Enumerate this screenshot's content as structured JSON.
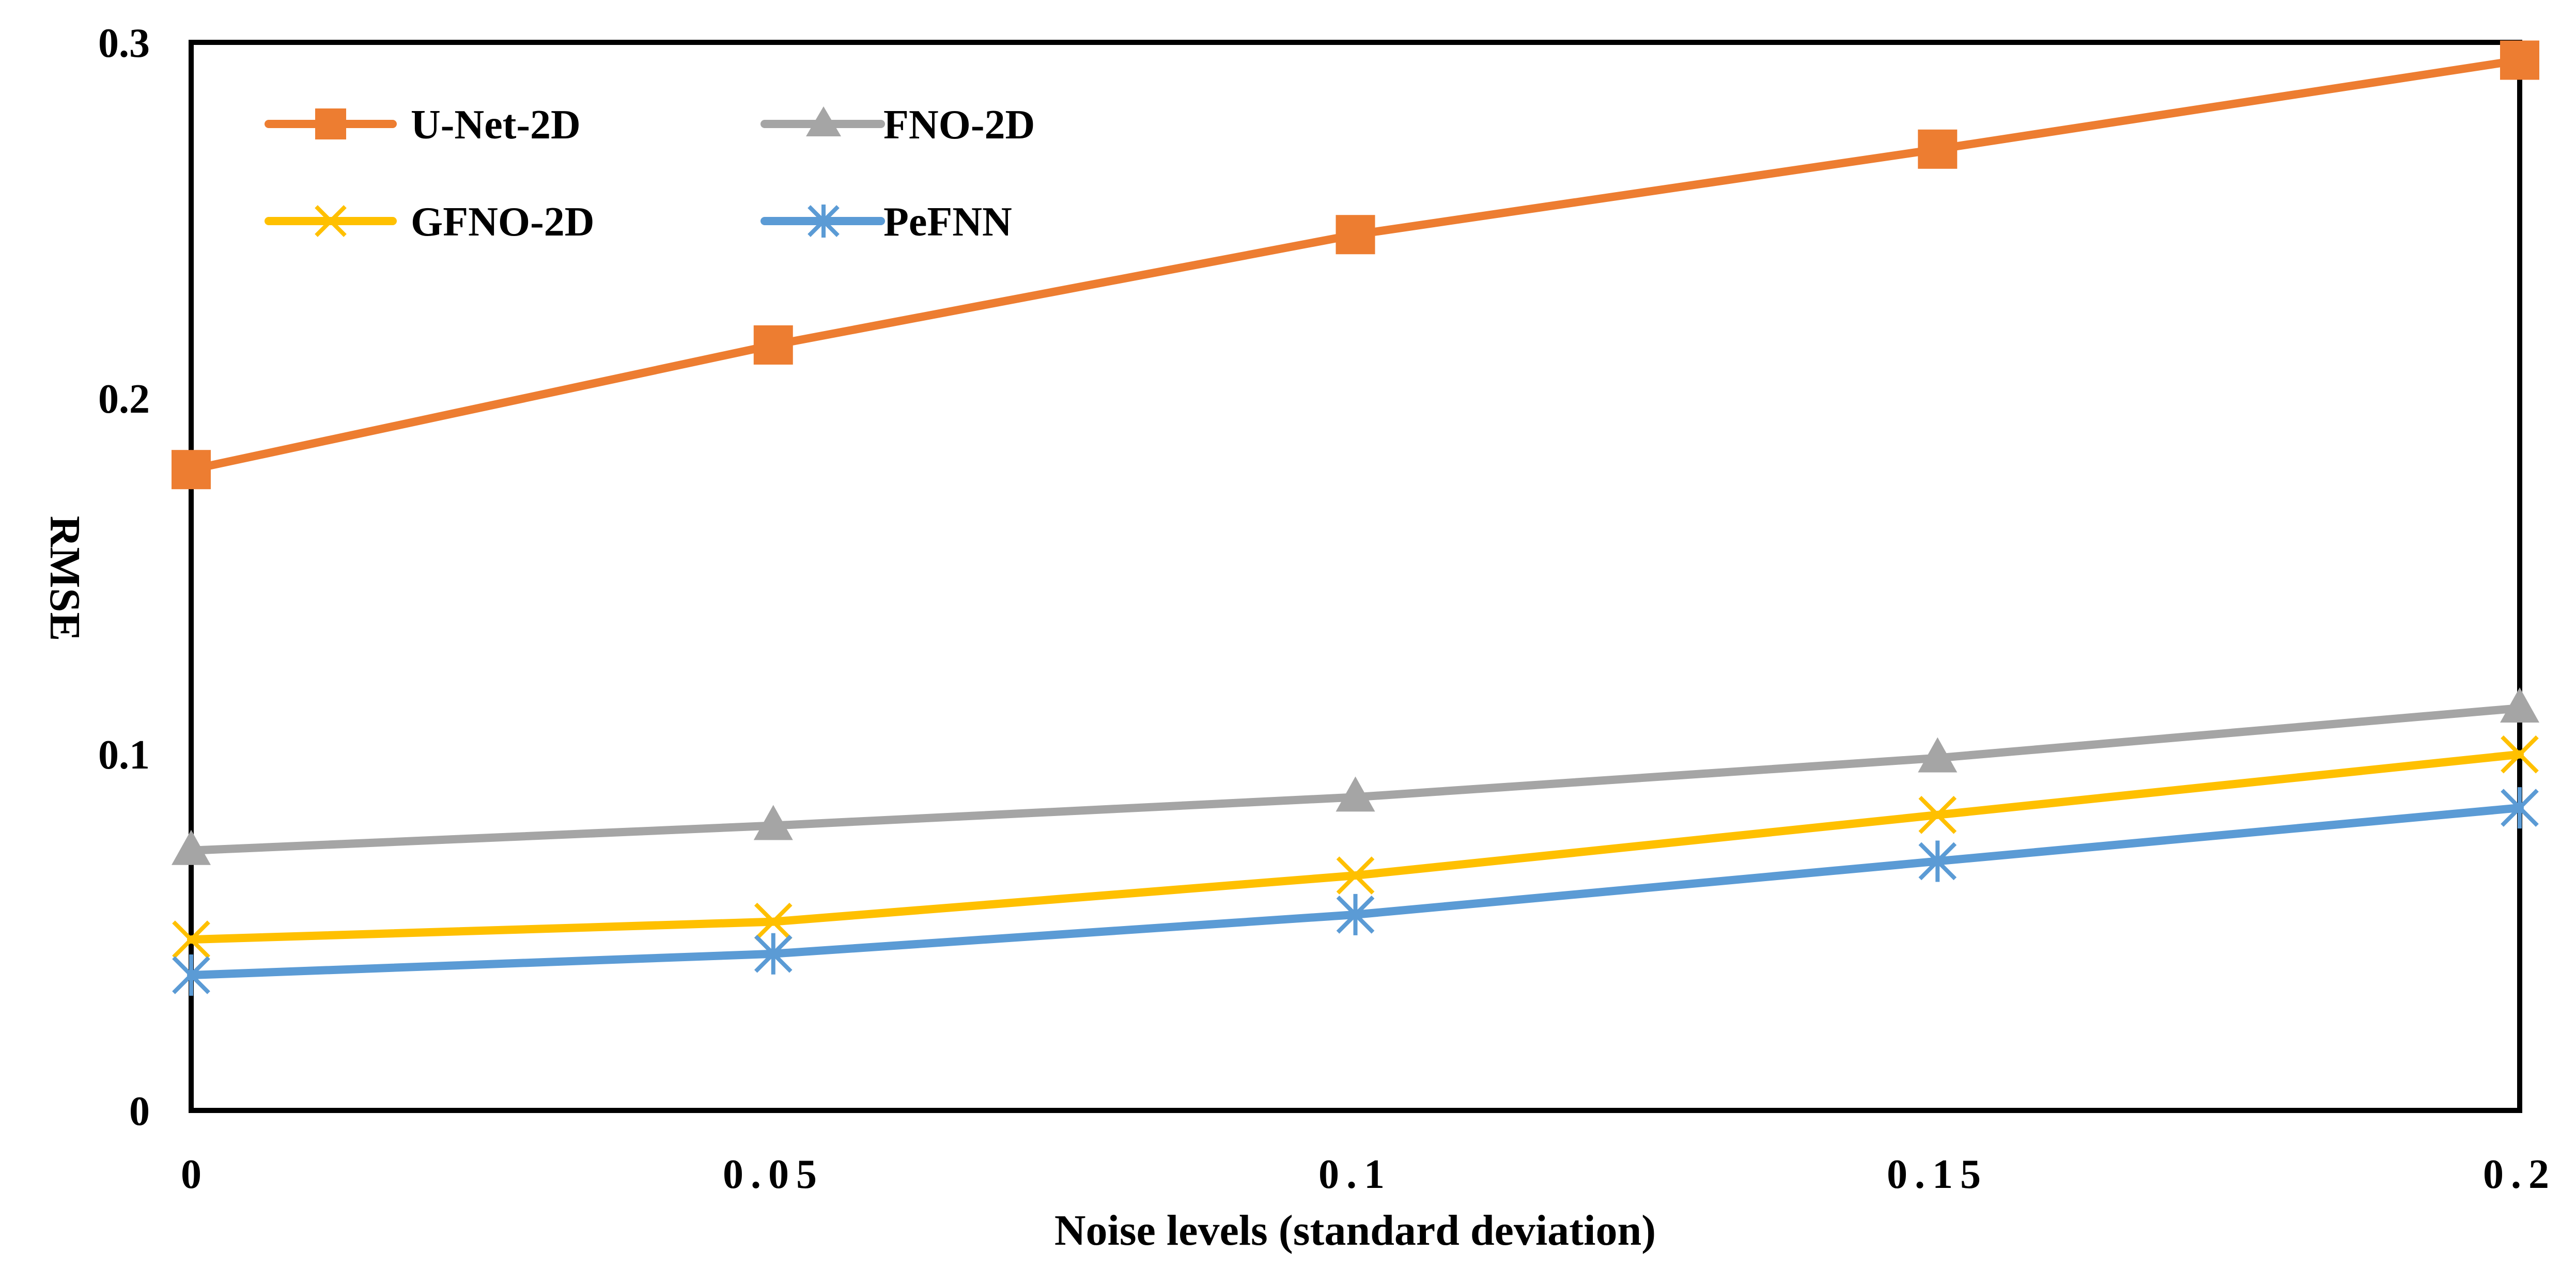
{
  "chart_data": {
    "type": "line",
    "title": "",
    "xlabel": "Noise levels (standard deviation)",
    "ylabel": "RMSE",
    "x": [
      0,
      0.05,
      0.1,
      0.15,
      0.2
    ],
    "x_tick_labels": [
      "0",
      "0.05",
      "0.1",
      "0.15",
      "0.2"
    ],
    "y_tick_labels": [
      "0",
      "0.1",
      "0.2",
      "0.3"
    ],
    "xlim": [
      0,
      0.2
    ],
    "ylim": [
      0,
      0.3
    ],
    "grid": false,
    "legend_position": "top-left",
    "series": [
      {
        "key": "unet",
        "name": "U-Net-2D",
        "marker": "square",
        "color": "#ED7D31",
        "values": [
          0.18,
          0.215,
          0.246,
          0.27,
          0.295
        ]
      },
      {
        "key": "fno",
        "name": "FNO-2D",
        "marker": "triangle",
        "color": "#A5A5A5",
        "values": [
          0.073,
          0.08,
          0.088,
          0.099,
          0.113
        ]
      },
      {
        "key": "gfno",
        "name": "GFNO-2D",
        "marker": "x",
        "color": "#FFC000",
        "values": [
          0.048,
          0.053,
          0.066,
          0.083,
          0.1
        ]
      },
      {
        "key": "pefnn",
        "name": "PeFNN",
        "marker": "star",
        "color": "#5B9BD5",
        "values": [
          0.038,
          0.044,
          0.055,
          0.07,
          0.085
        ]
      }
    ]
  }
}
